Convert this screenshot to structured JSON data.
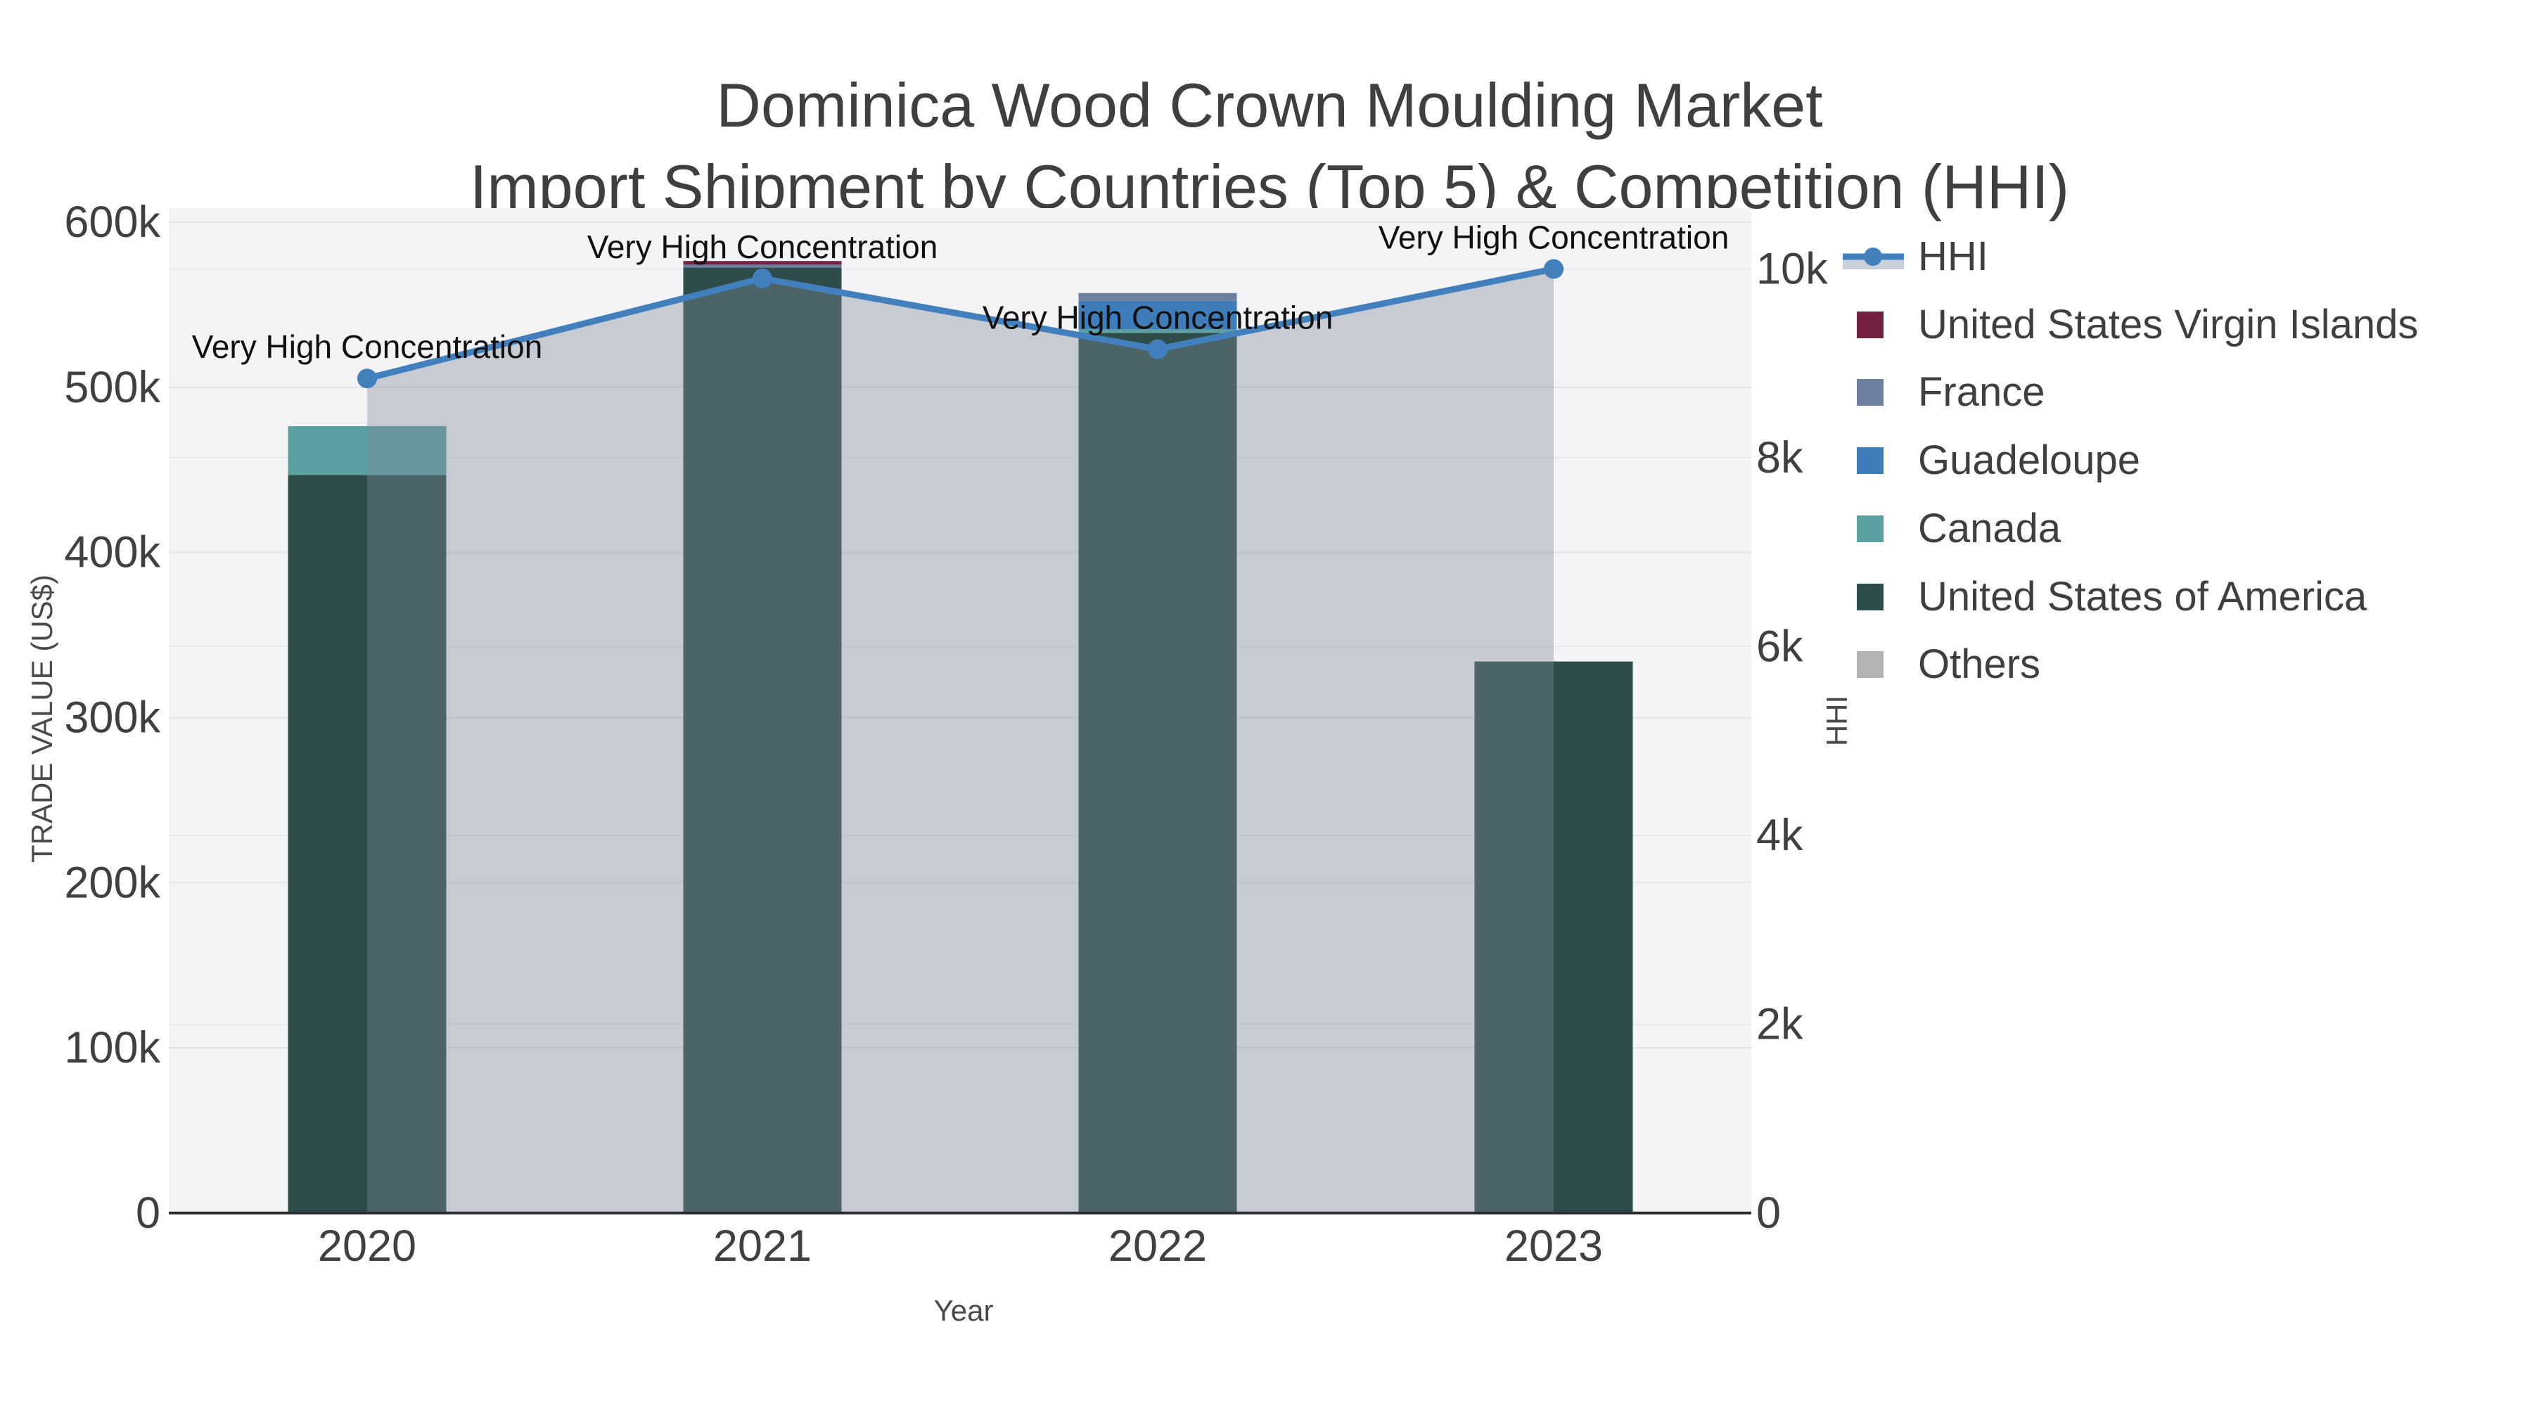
{
  "title": {
    "line1": "Dominica Wood Crown Moulding Market",
    "line2": "Import Shipment by Countries (Top 5) & Competition (HHI)"
  },
  "axes": {
    "x": {
      "title": "Year",
      "ticks": [
        "2020",
        "2021",
        "2022",
        "2023"
      ]
    },
    "y_left": {
      "title": "TRADE VALUE (US$)",
      "ticks": [
        "0",
        "100k",
        "200k",
        "300k",
        "400k",
        "500k",
        "600k"
      ],
      "tick_values": [
        0,
        100000,
        200000,
        300000,
        400000,
        500000,
        600000
      ],
      "range": [
        0,
        600000
      ]
    },
    "y_right": {
      "title": "HHI",
      "ticks": [
        "0",
        "2k",
        "4k",
        "6k",
        "8k",
        "10k"
      ],
      "tick_values": [
        0,
        2000,
        4000,
        6000,
        8000,
        10000
      ],
      "range": [
        0,
        10000
      ]
    }
  },
  "chart_data": {
    "type": "bar+line",
    "title": "Dominica Wood Crown Moulding Market Import Shipment by Countries (Top 5) & Competition (HHI)",
    "xlabel": "Year",
    "ylabel_left": "TRADE VALUE (US$)",
    "ylabel_right": "HHI",
    "categories": [
      "2020",
      "2021",
      "2022",
      "2023"
    ],
    "bar_mode": "stacked",
    "series": [
      {
        "name": "United States of America",
        "color": "#2e4d4a",
        "values": [
          447000,
          572500,
          533000,
          334000
        ]
      },
      {
        "name": "Canada",
        "color": "#5ba1a1",
        "values": [
          29500,
          0,
          2100,
          0
        ]
      },
      {
        "name": "Guadeloupe",
        "color": "#3e7cba",
        "values": [
          0,
          0,
          17300,
          0
        ]
      },
      {
        "name": "France",
        "color": "#6e80a0",
        "values": [
          0,
          1800,
          4700,
          0
        ]
      },
      {
        "name": "United States Virgin Islands",
        "color": "#721f40",
        "values": [
          0,
          2200,
          0,
          0
        ]
      },
      {
        "name": "Others",
        "color": "#b3b3b3",
        "values": [
          0,
          0,
          0,
          0
        ]
      }
    ],
    "line_series": {
      "name": "HHI",
      "color": "#4180bd",
      "area_fill": "rgba(125,137,155,0.38)",
      "values": [
        8840,
        9900,
        9150,
        10000
      ]
    },
    "annotations": [
      "Very High Concentration",
      "Very High Concentration",
      "Very High Concentration",
      "Very High Concentration"
    ],
    "ylim_left": [
      0,
      600000
    ],
    "ylim_right": [
      0,
      10000
    ],
    "grid": "on",
    "legend_position": "right"
  },
  "legend": {
    "items": [
      {
        "label": "HHI",
        "type": "line",
        "color": "#4180bd",
        "band_color": "#c9cfd9"
      },
      {
        "label": "United States Virgin Islands",
        "type": "square",
        "color": "#721f40"
      },
      {
        "label": "France",
        "type": "square",
        "color": "#6e80a0"
      },
      {
        "label": "Guadeloupe",
        "type": "square",
        "color": "#3e7cba"
      },
      {
        "label": "Canada",
        "type": "square",
        "color": "#5ba1a1"
      },
      {
        "label": "United States of America",
        "type": "square",
        "color": "#2e4d4a"
      },
      {
        "label": "Others",
        "type": "square",
        "color": "#b3b3b3"
      }
    ]
  },
  "colors": {
    "plot_bg": "#f4f4f6",
    "grid_left": "#e3e4e8",
    "grid_right": "#eaeaee",
    "axis_line": "#2b2b2b",
    "tick_text": "#404040",
    "annotation_text": "#111111"
  }
}
